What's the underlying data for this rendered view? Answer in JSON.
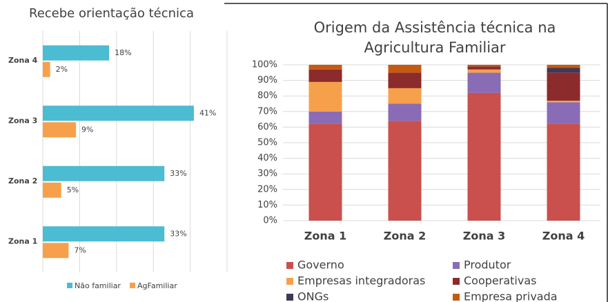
{
  "chart_data": [
    {
      "type": "hbar",
      "title": "Recebe orientação técnica",
      "categories": [
        "Zona 1",
        "Zona 2",
        "Zona 3",
        "Zona 4"
      ],
      "series": [
        {
          "name": "Não familiar",
          "color": "#4bbcd2",
          "values": [
            33,
            33,
            41,
            18
          ],
          "value_labels": [
            "33%",
            "33%",
            "41%",
            "18%"
          ]
        },
        {
          "name": "AgFamiliar",
          "color": "#f7a04b",
          "values": [
            7,
            5,
            9,
            2
          ],
          "value_labels": [
            "7%",
            "5%",
            "9%",
            "2%"
          ]
        }
      ],
      "xlim": [
        0,
        50
      ],
      "xticks": [
        0,
        10,
        20,
        30,
        40,
        50
      ],
      "grid": true,
      "legend": "bottom"
    },
    {
      "type": "stacked_bar",
      "title": "Origem da Assistência técnica na Agricultura Familiar",
      "categories": [
        "Zona 1",
        "Zona 2",
        "Zona 3",
        "Zona 4"
      ],
      "series": [
        {
          "name": "Governo",
          "color": "#c9504c",
          "values": [
            62,
            64,
            82,
            62
          ]
        },
        {
          "name": "Produtor",
          "color": "#8a6bb5",
          "values": [
            8,
            11,
            13,
            14
          ]
        },
        {
          "name": "Empresas integradoras",
          "color": "#f7a04b",
          "values": [
            19,
            10,
            2,
            1
          ]
        },
        {
          "name": "Cooperativas",
          "color": "#8b2b2b",
          "values": [
            8,
            10,
            2,
            18
          ]
        },
        {
          "name": "ONGs",
          "color": "#403858",
          "values": [
            0,
            0,
            0,
            3
          ]
        },
        {
          "name": "Empresa privada",
          "color": "#c65a11",
          "values": [
            3,
            5,
            1,
            2
          ]
        }
      ],
      "ylim": [
        0,
        100
      ],
      "yticks": [
        {
          "value": 0,
          "label": "0%"
        },
        {
          "value": 10,
          "label": "10%"
        },
        {
          "value": 20,
          "label": "20%"
        },
        {
          "value": 30,
          "label": "30%"
        },
        {
          "value": 40,
          "label": "40%"
        },
        {
          "value": 50,
          "label": "50%"
        },
        {
          "value": 60,
          "label": "60%"
        },
        {
          "value": 70,
          "label": "70%"
        },
        {
          "value": 80,
          "label": "80%"
        },
        {
          "value": 90,
          "label": "90%"
        },
        {
          "value": 100,
          "label": "100%"
        }
      ],
      "grid": true,
      "legend": "bottom"
    }
  ]
}
